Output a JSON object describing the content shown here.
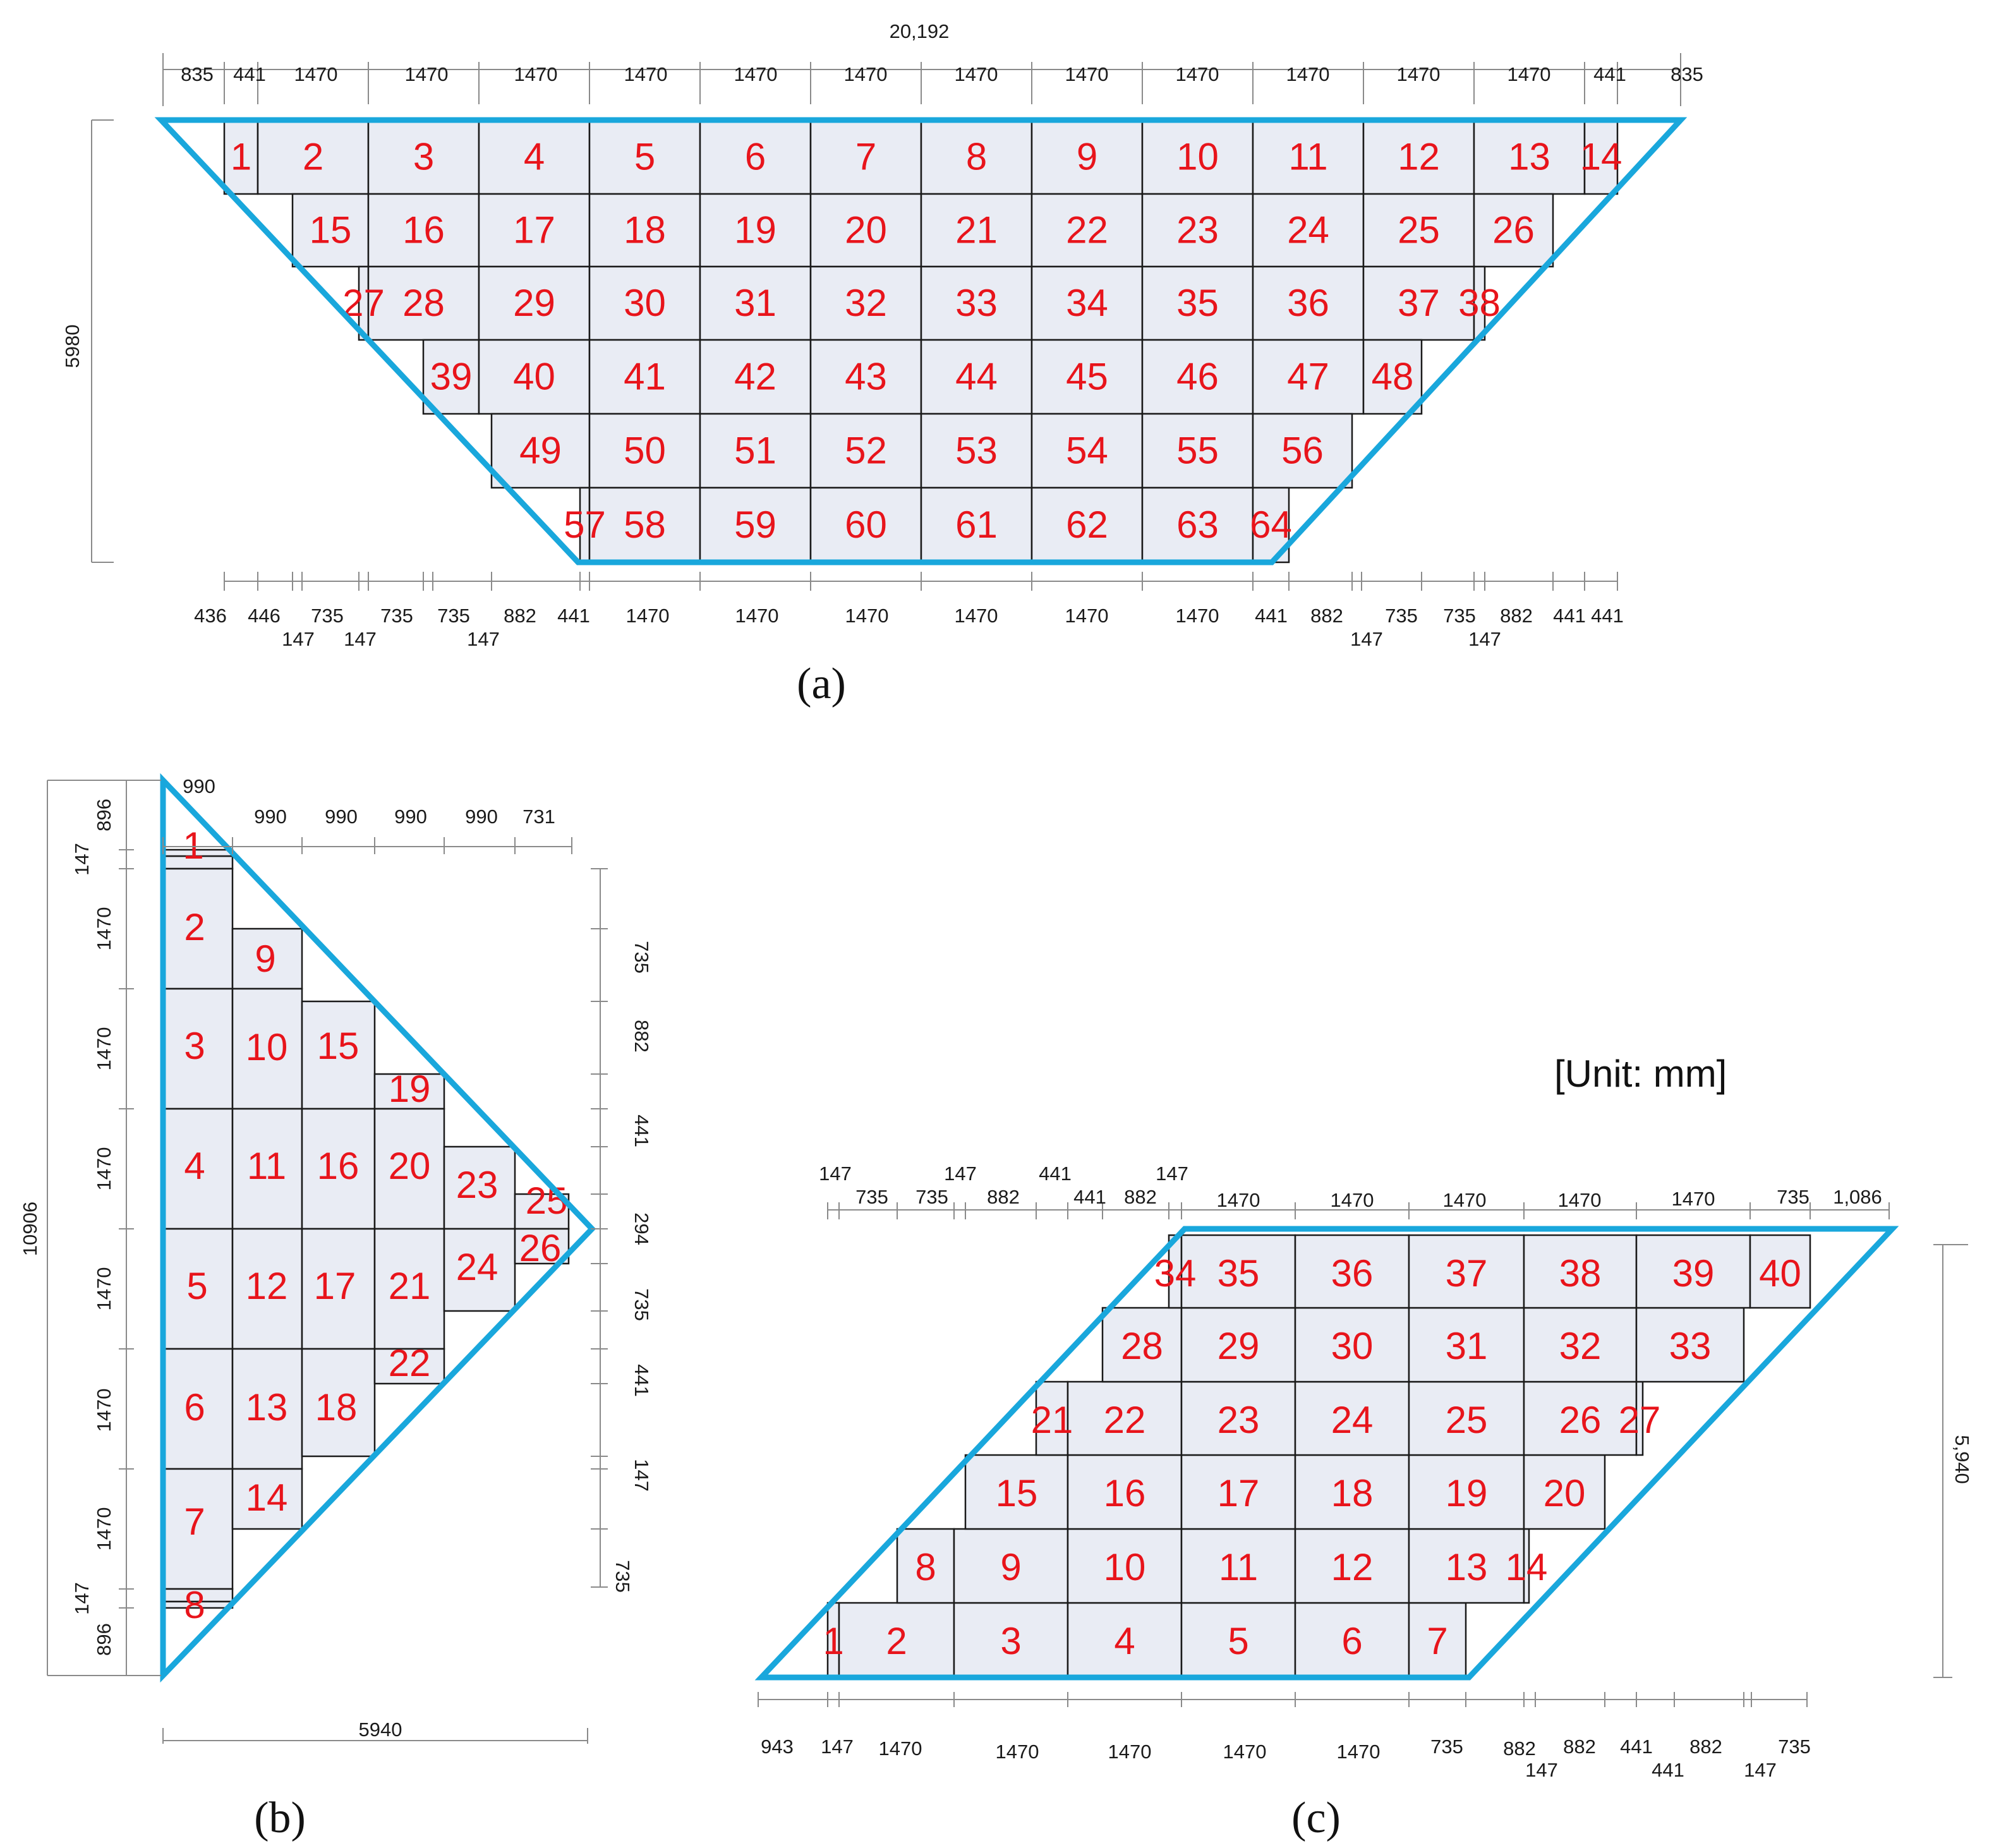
{
  "unit_label": "[Unit: mm]",
  "panel_a": {
    "caption": "(a)",
    "total_width": "20,192",
    "height_label": "5980",
    "top_dims": [
      "835",
      "441",
      "1470",
      "1470",
      "1470",
      "1470",
      "1470",
      "1470",
      "1470",
      "1470",
      "1470",
      "1470",
      "1470",
      "1470",
      "441",
      "835"
    ],
    "bottom_dims_upper": [
      "436",
      "446",
      "735",
      "735",
      "735",
      "882",
      "441",
      "1470",
      "1470",
      "1470",
      "1470",
      "1470",
      "1470",
      "441",
      "882",
      "735",
      "735",
      "882",
      "441",
      "441"
    ],
    "bottom_dims_lower": [
      "147",
      "147",
      "147",
      "147",
      "147"
    ],
    "tiles": [
      "1",
      "2",
      "3",
      "4",
      "5",
      "6",
      "7",
      "8",
      "9",
      "10",
      "11",
      "12",
      "13",
      "14",
      "15",
      "16",
      "17",
      "18",
      "19",
      "20",
      "21",
      "22",
      "23",
      "24",
      "25",
      "26",
      "27",
      "28",
      "29",
      "30",
      "31",
      "32",
      "33",
      "34",
      "35",
      "36",
      "37",
      "38",
      "39",
      "40",
      "41",
      "42",
      "43",
      "44",
      "45",
      "46",
      "47",
      "48",
      "49",
      "50",
      "51",
      "52",
      "53",
      "54",
      "55",
      "56",
      "57",
      "58",
      "59",
      "60",
      "61",
      "62",
      "63",
      "64"
    ]
  },
  "panel_b": {
    "caption": "(b)",
    "height_label": "10906",
    "width_label": "5940",
    "top_dims": [
      "990",
      "990",
      "990",
      "990",
      "990",
      "731"
    ],
    "left_dims": [
      "896",
      "147",
      "1470",
      "1470",
      "1470",
      "1470",
      "1470",
      "1470",
      "147",
      "896"
    ],
    "right_dims": [
      "735",
      "882",
      "441",
      "294",
      "735",
      "441",
      "147",
      "735"
    ],
    "tiles": [
      "1",
      "2",
      "3",
      "4",
      "5",
      "6",
      "7",
      "8",
      "9",
      "10",
      "11",
      "12",
      "13",
      "14",
      "15",
      "16",
      "17",
      "18",
      "19",
      "20",
      "21",
      "22",
      "23",
      "24",
      "25",
      "26"
    ]
  },
  "panel_c": {
    "caption": "(c)",
    "height_label": "5,940",
    "top_dims_upper": [
      "147",
      "147",
      "441",
      "147"
    ],
    "top_dims_lower": [
      "735",
      "735",
      "882",
      "441",
      "882",
      "1470",
      "1470",
      "1470",
      "1470",
      "1470",
      "735",
      "1,086"
    ],
    "bottom_dims_upper": [
      "943",
      "147",
      "1470",
      "1470",
      "1470",
      "1470",
      "1470",
      "735",
      "882",
      "882",
      "441",
      "882",
      "735"
    ],
    "bottom_dims_lower": [
      "147",
      "441",
      "147"
    ],
    "tiles": [
      "1",
      "2",
      "3",
      "4",
      "5",
      "6",
      "7",
      "8",
      "9",
      "10",
      "11",
      "12",
      "13",
      "14",
      "15",
      "16",
      "17",
      "18",
      "19",
      "20",
      "21",
      "22",
      "23",
      "24",
      "25",
      "26",
      "27",
      "28",
      "29",
      "30",
      "31",
      "32",
      "33",
      "34",
      "35",
      "36",
      "37",
      "38",
      "39",
      "40"
    ]
  }
}
